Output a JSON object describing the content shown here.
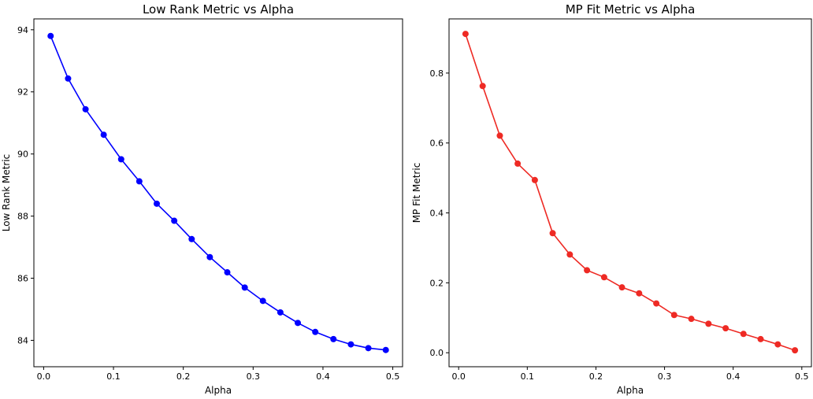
{
  "chart_data": [
    {
      "type": "line",
      "title": "Low Rank Metric vs Alpha",
      "xlabel": "Alpha",
      "ylabel": "Low Rank Metric",
      "xlim": [
        -0.014,
        0.514
      ],
      "ylim": [
        83.15,
        94.35
      ],
      "xticks": [
        0.0,
        0.1,
        0.2,
        0.3,
        0.4,
        0.5
      ],
      "xtick_labels": [
        "0.0",
        "0.1",
        "0.2",
        "0.3",
        "0.4",
        "0.5"
      ],
      "yticks": [
        84,
        86,
        88,
        90,
        92,
        94
      ],
      "ytick_labels": [
        "84",
        "86",
        "88",
        "90",
        "92",
        "94"
      ],
      "grid": false,
      "series": [
        {
          "color": "#0000ff",
          "x": [
            0.01,
            0.035,
            0.06,
            0.086,
            0.111,
            0.137,
            0.162,
            0.187,
            0.212,
            0.238,
            0.263,
            0.288,
            0.314,
            0.339,
            0.364,
            0.389,
            0.415,
            0.44,
            0.465,
            0.49
          ],
          "y": [
            93.8,
            92.43,
            91.44,
            90.62,
            89.83,
            89.12,
            88.4,
            87.85,
            87.26,
            86.68,
            86.19,
            85.7,
            85.27,
            84.9,
            84.56,
            84.27,
            84.04,
            83.87,
            83.75,
            83.69
          ]
        }
      ]
    },
    {
      "type": "line",
      "title": "MP Fit Metric vs Alpha",
      "xlabel": "Alpha",
      "ylabel": "MP Fit Metric",
      "xlim": [
        -0.014,
        0.514
      ],
      "ylim": [
        -0.04,
        0.955
      ],
      "xticks": [
        0.0,
        0.1,
        0.2,
        0.3,
        0.4,
        0.5
      ],
      "xtick_labels": [
        "0.0",
        "0.1",
        "0.2",
        "0.3",
        "0.4",
        "0.5"
      ],
      "yticks": [
        0.0,
        0.2,
        0.4,
        0.6,
        0.8
      ],
      "ytick_labels": [
        "0.0",
        "0.2",
        "0.4",
        "0.6",
        "0.8"
      ],
      "grid": false,
      "series": [
        {
          "color": "#ee2a24",
          "x": [
            0.01,
            0.035,
            0.06,
            0.086,
            0.111,
            0.137,
            0.162,
            0.187,
            0.212,
            0.238,
            0.263,
            0.288,
            0.314,
            0.339,
            0.364,
            0.389,
            0.415,
            0.44,
            0.465,
            0.49
          ],
          "y": [
            0.912,
            0.763,
            0.621,
            0.541,
            0.494,
            0.342,
            0.281,
            0.236,
            0.216,
            0.187,
            0.17,
            0.141,
            0.108,
            0.097,
            0.083,
            0.07,
            0.054,
            0.039,
            0.024,
            0.007
          ]
        }
      ]
    }
  ]
}
